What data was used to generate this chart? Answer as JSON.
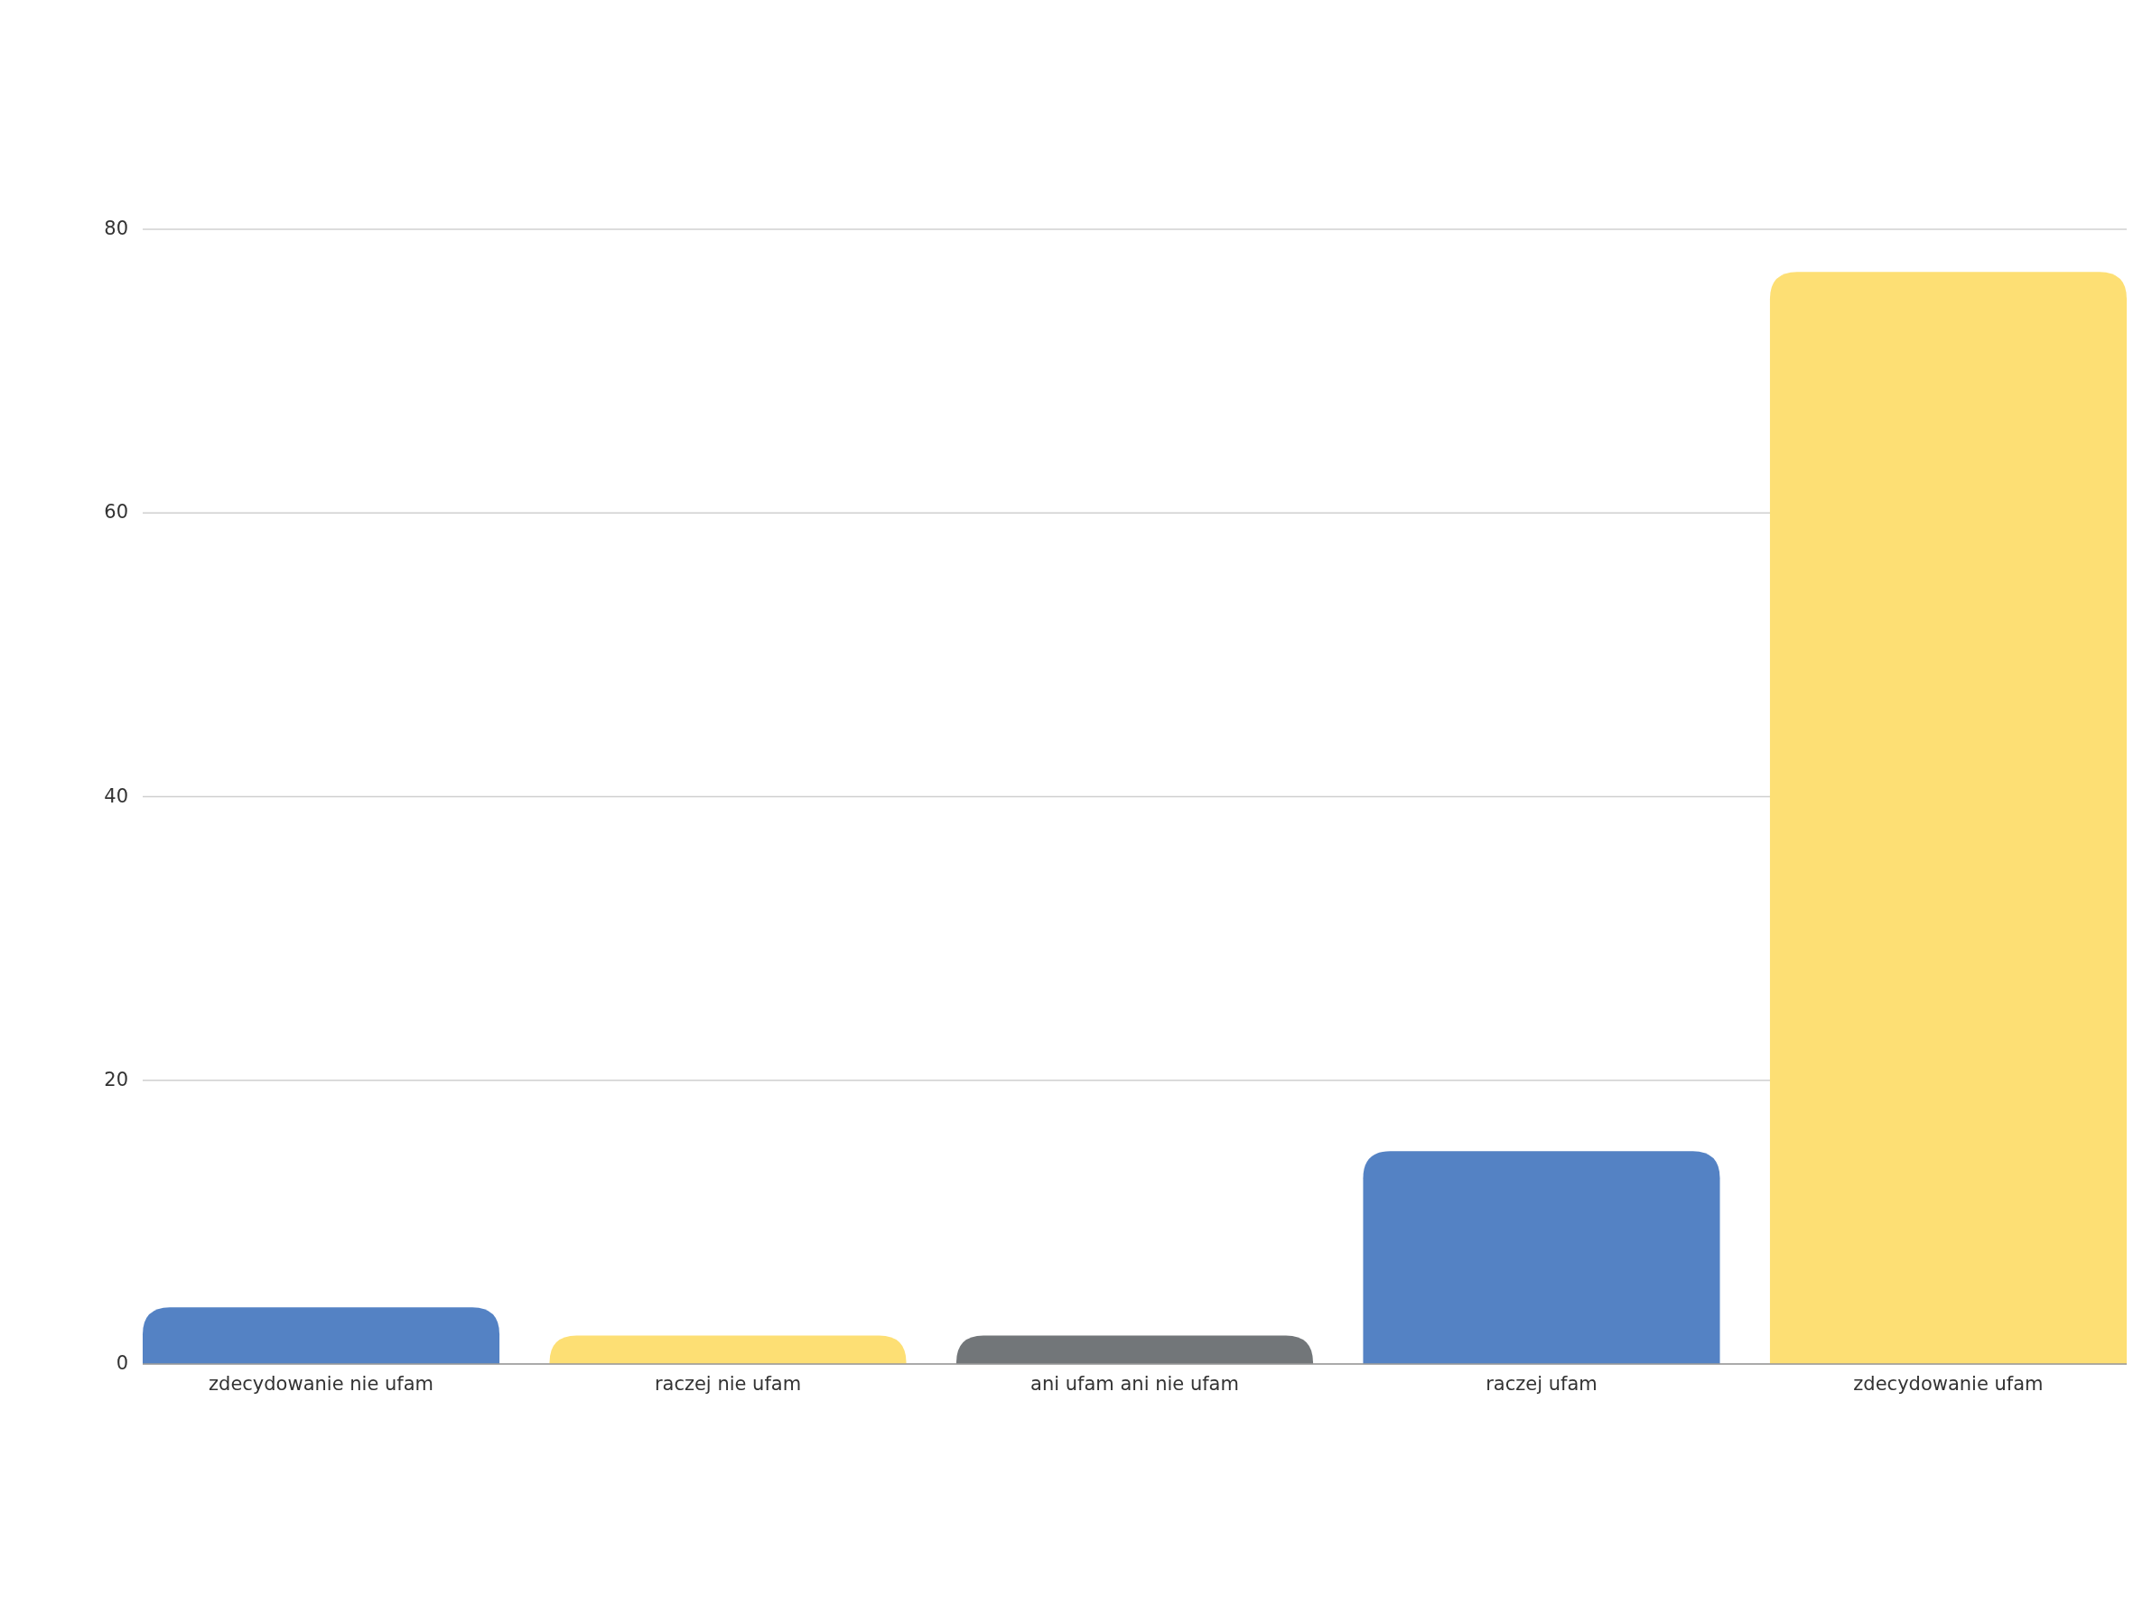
{
  "chart_data": {
    "type": "bar",
    "categories": [
      "zdecydowanie nie ufam",
      "raczej nie ufam",
      "ani ufam ani nie ufam",
      "raczej ufam",
      "zdecydowanie ufam"
    ],
    "values": [
      4,
      2,
      2,
      15,
      77
    ],
    "colors": [
      "#5482c4",
      "#fddf74",
      "#727679",
      "#5482c4",
      "#fddf74"
    ],
    "ylim": [
      0,
      80
    ],
    "yticks": [
      0,
      20,
      40,
      60,
      80
    ],
    "grid": "y"
  }
}
